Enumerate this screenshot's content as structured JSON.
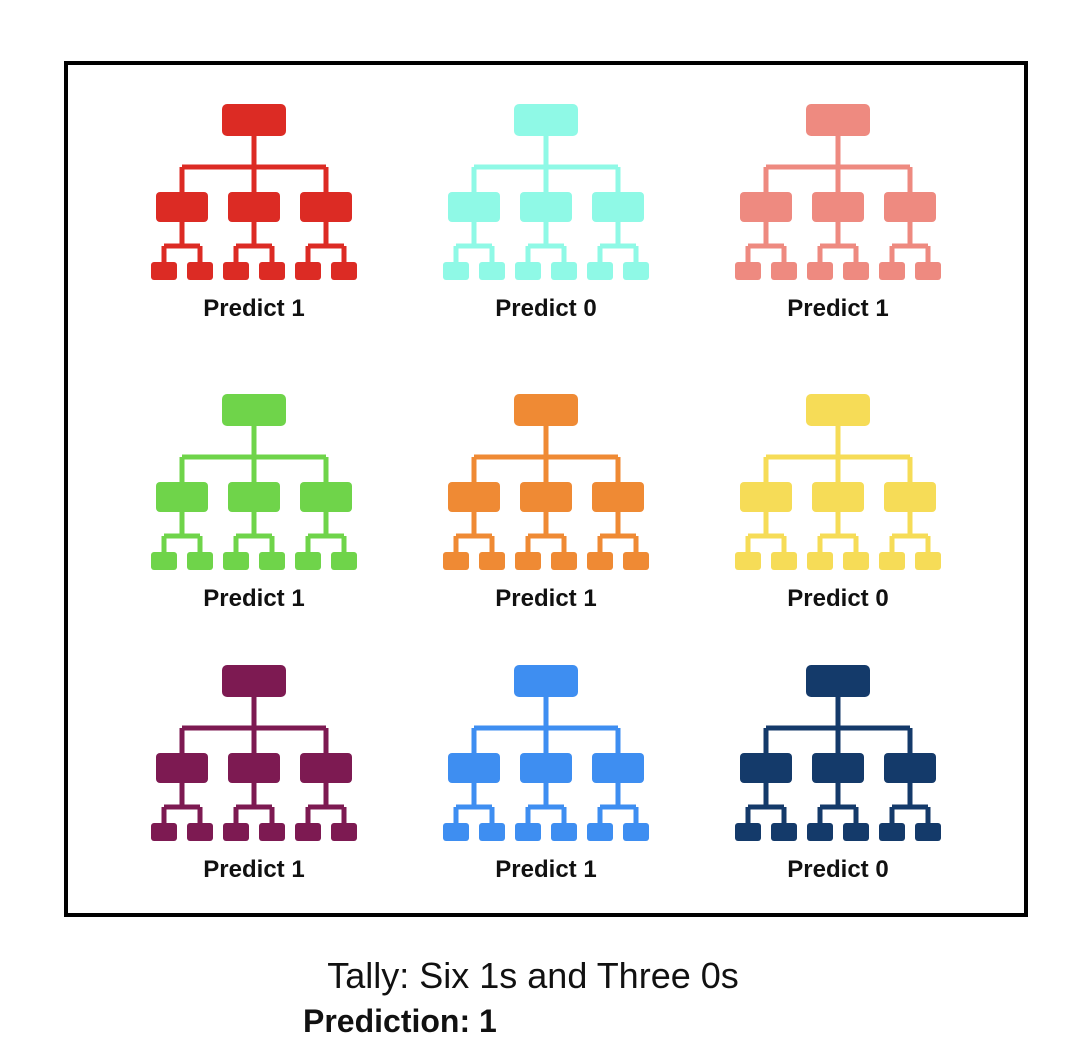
{
  "trees": [
    {
      "color": "#dc2b24",
      "label": "Predict 1"
    },
    {
      "color": "#8ff9e6",
      "label": "Predict 0"
    },
    {
      "color": "#ee8a80",
      "label": "Predict 1"
    },
    {
      "color": "#6fd44a",
      "label": "Predict 1"
    },
    {
      "color": "#ef8a34",
      "label": "Predict 1"
    },
    {
      "color": "#f6dc57",
      "label": "Predict 0"
    },
    {
      "color": "#7d1a52",
      "label": "Predict 1"
    },
    {
      "color": "#3e8ef1",
      "label": "Predict 1"
    },
    {
      "color": "#143a6a",
      "label": "Predict 0"
    }
  ],
  "tally": "Tally: Six 1s and Three 0s",
  "prediction": "Prediction: 1"
}
